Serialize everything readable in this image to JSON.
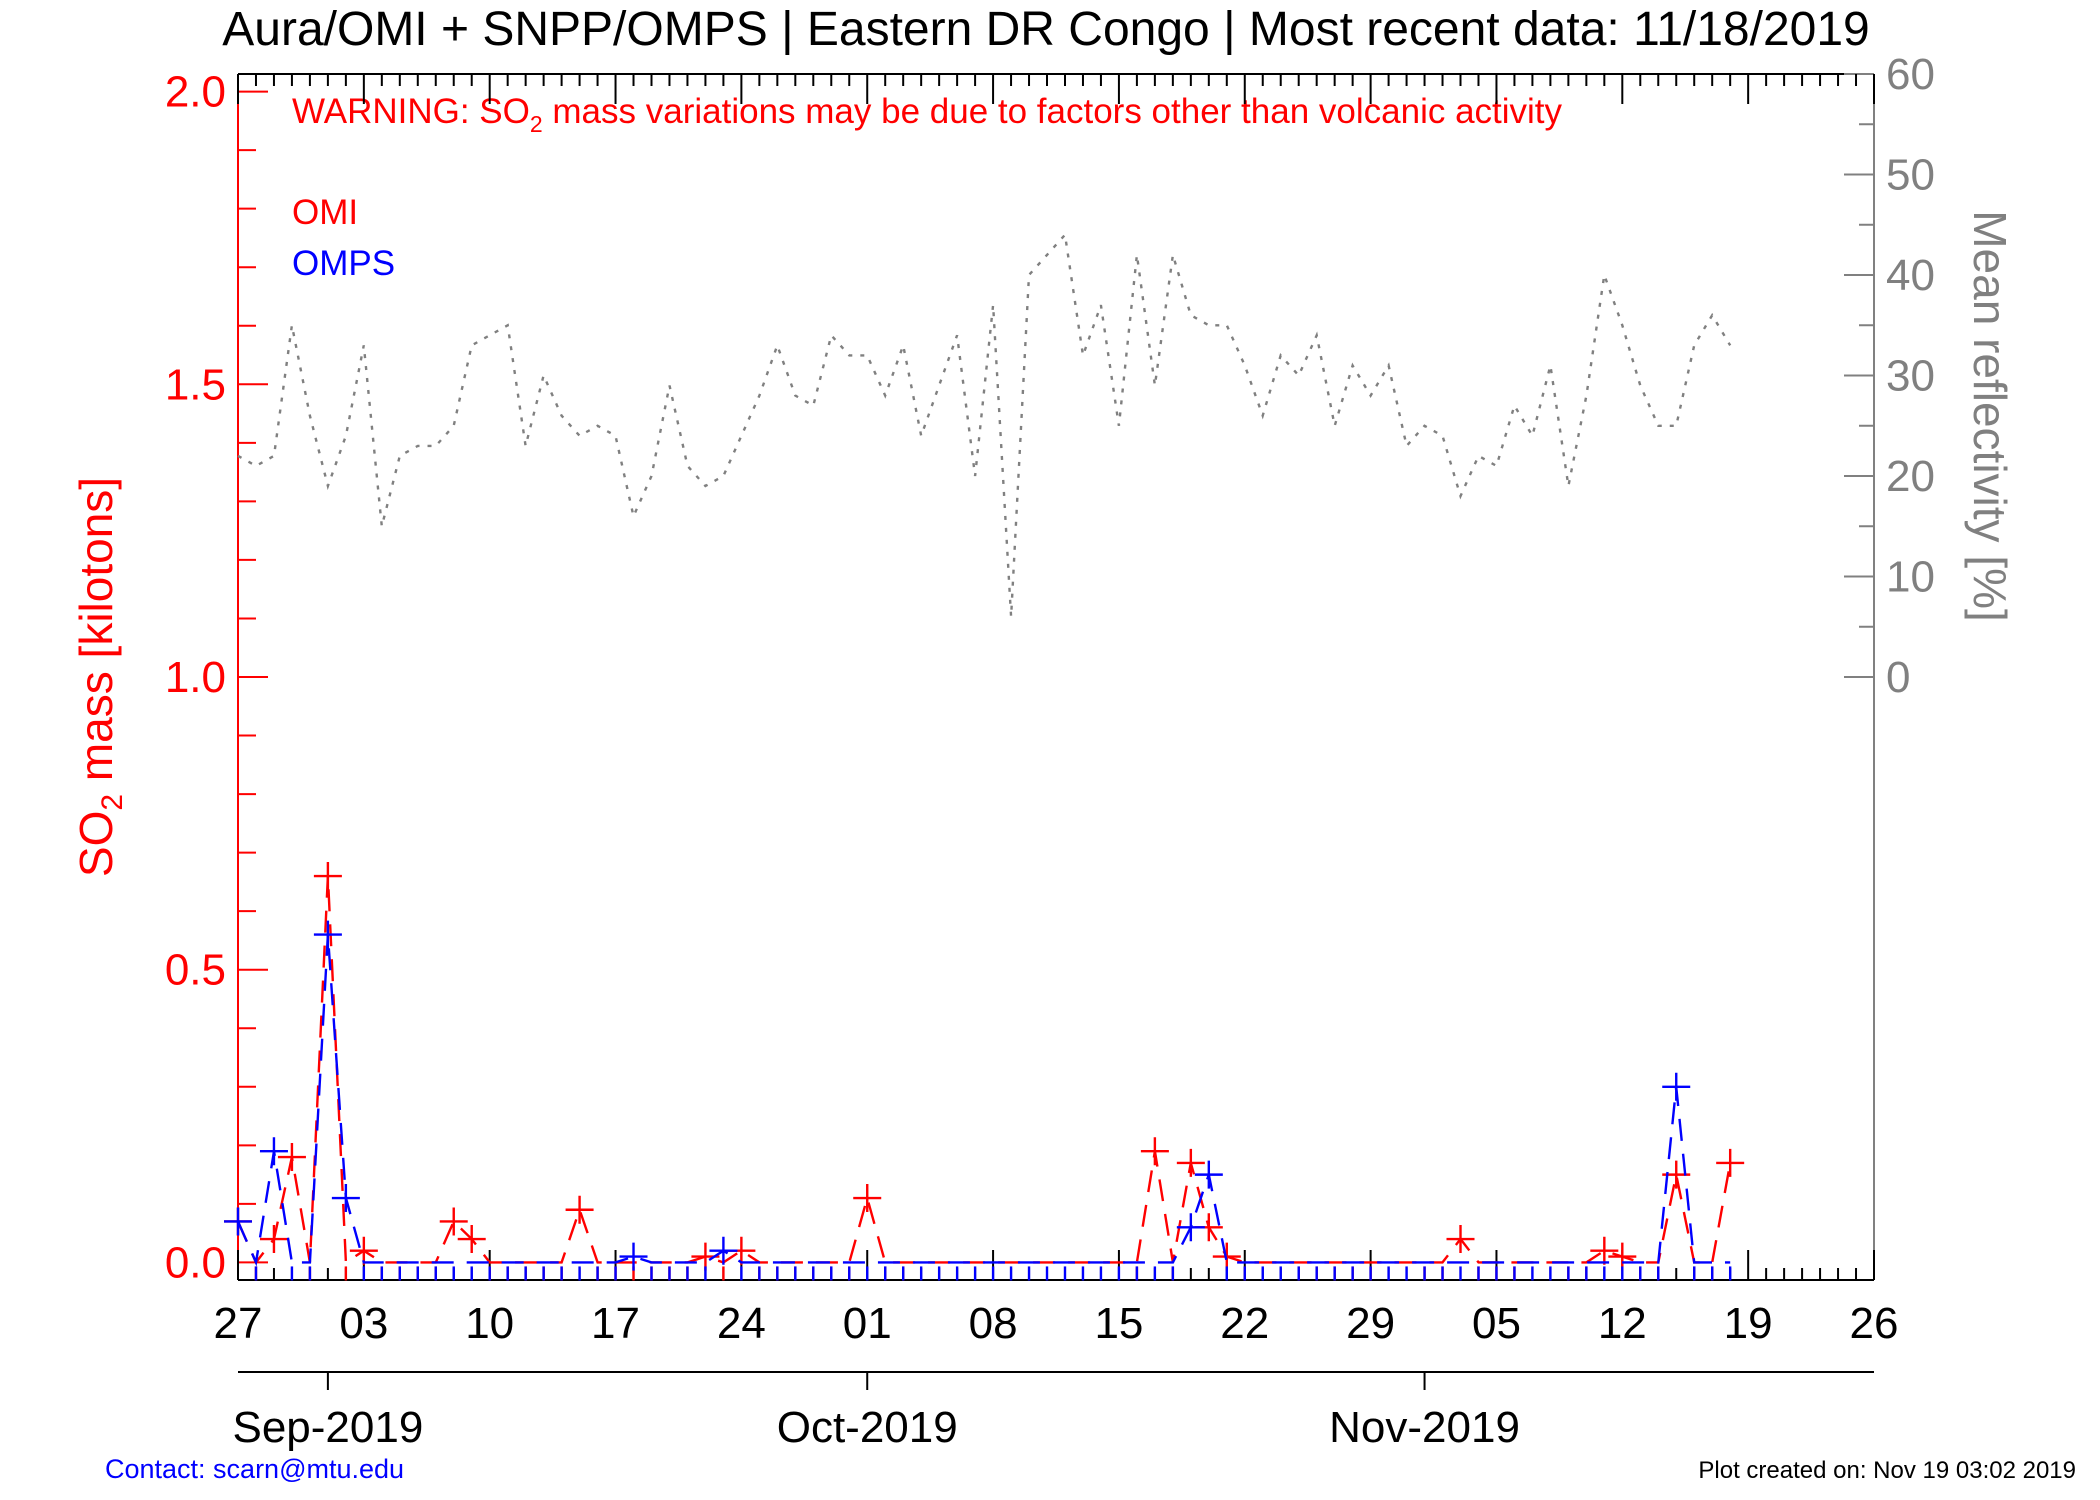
{
  "title": "Aura/OMI + SNPP/OMPS | Eastern DR Congo | Most recent data: 11/18/2019",
  "warning": {
    "prefix": "WARNING: SO",
    "sub": "2",
    "suffix": " mass variations may be due to factors other than volcanic activity"
  },
  "legend": {
    "omi": "OMI",
    "omps": "OMPS"
  },
  "contact": "Contact: scarn@mtu.edu",
  "created": "Plot created on: Nov 19 03:02 2019",
  "colors": {
    "omi": "#ff0000",
    "omps": "#0000ff",
    "reflectivity": "#808080",
    "axis": "#000000"
  },
  "chart_data": {
    "type": "line",
    "left_axis": {
      "label_prefix": "SO",
      "label_sub": "2",
      "label_suffix": " mass [kilotons]",
      "range": [
        -0.03,
        2.03
      ],
      "ticks": [
        0.0,
        0.5,
        1.0,
        1.5,
        2.0
      ],
      "tick_labels": [
        "0.0",
        "0.5",
        "1.0",
        "1.5",
        "2.0"
      ]
    },
    "right_axis": {
      "label": "Mean reflectivity [%]",
      "range": [
        -60,
        60
      ],
      "ticks": [
        0,
        10,
        20,
        30,
        40,
        50,
        60
      ],
      "tick_labels": [
        "0",
        "10",
        "20",
        "30",
        "40",
        "50",
        "60"
      ]
    },
    "x_axis": {
      "range": [
        "2019-08-27",
        "2019-11-26"
      ],
      "tick_dates": [
        "2019-08-27",
        "2019-09-03",
        "2019-09-10",
        "2019-09-17",
        "2019-09-24",
        "2019-10-01",
        "2019-10-08",
        "2019-10-15",
        "2019-10-22",
        "2019-10-29",
        "2019-11-05",
        "2019-11-12",
        "2019-11-19",
        "2019-11-26"
      ],
      "tick_labels": [
        "27",
        "03",
        "10",
        "17",
        "24",
        "01",
        "08",
        "15",
        "22",
        "29",
        "05",
        "12",
        "19",
        "26"
      ],
      "month_dates": [
        "2019-09-01",
        "2019-10-01",
        "2019-11-01"
      ],
      "month_labels": [
        "Sep-2019",
        "Oct-2019",
        "Nov-2019"
      ]
    },
    "series": [
      {
        "name": "OMI",
        "values": [
          [
            "2019-08-27",
            0.07
          ],
          [
            "2019-08-28",
            0.0
          ],
          [
            "2019-08-29",
            0.04
          ],
          [
            "2019-08-30",
            0.18
          ],
          [
            "2019-08-31",
            0.0
          ],
          [
            "2019-09-01",
            0.66
          ],
          [
            "2019-09-02",
            0.0
          ],
          [
            "2019-09-03",
            0.02
          ],
          [
            "2019-09-04",
            0.0
          ],
          [
            "2019-09-05",
            0.0
          ],
          [
            "2019-09-06",
            0.0
          ],
          [
            "2019-09-07",
            0.0
          ],
          [
            "2019-09-08",
            0.07
          ],
          [
            "2019-09-09",
            0.04
          ],
          [
            "2019-09-10",
            0.0
          ],
          [
            "2019-09-11",
            0.0
          ],
          [
            "2019-09-12",
            0.0
          ],
          [
            "2019-09-13",
            0.0
          ],
          [
            "2019-09-14",
            0.0
          ],
          [
            "2019-09-15",
            0.09
          ],
          [
            "2019-09-16",
            0.0
          ],
          [
            "2019-09-17",
            0.0
          ],
          [
            "2019-09-18",
            0.0
          ],
          [
            "2019-09-19",
            0.0
          ],
          [
            "2019-09-20",
            0.0
          ],
          [
            "2019-09-21",
            0.0
          ],
          [
            "2019-09-22",
            0.01
          ],
          [
            "2019-09-23",
            0.0
          ],
          [
            "2019-09-24",
            0.02
          ],
          [
            "2019-09-25",
            0.0
          ],
          [
            "2019-09-26",
            0.0
          ],
          [
            "2019-09-27",
            0.0
          ],
          [
            "2019-09-28",
            0.0
          ],
          [
            "2019-09-29",
            0.0
          ],
          [
            "2019-09-30",
            0.0
          ],
          [
            "2019-10-01",
            0.11
          ],
          [
            "2019-10-02",
            0.0
          ],
          [
            "2019-10-03",
            0.0
          ],
          [
            "2019-10-16",
            0.0
          ],
          [
            "2019-10-17",
            0.19
          ],
          [
            "2019-10-18",
            0.0
          ],
          [
            "2019-10-19",
            0.17
          ],
          [
            "2019-10-20",
            0.06
          ],
          [
            "2019-10-21",
            0.01
          ],
          [
            "2019-10-22",
            0.0
          ],
          [
            "2019-10-25",
            0.0
          ],
          [
            "2019-10-26",
            0.0
          ],
          [
            "2019-10-27",
            0.0
          ],
          [
            "2019-10-28",
            0.0
          ],
          [
            "2019-10-29",
            0.0
          ],
          [
            "2019-11-01",
            0.0
          ],
          [
            "2019-11-02",
            0.0
          ],
          [
            "2019-11-03",
            0.04
          ],
          [
            "2019-11-04",
            0.0
          ],
          [
            "2019-11-05",
            0.0
          ],
          [
            "2019-11-06",
            0.0
          ],
          [
            "2019-11-09",
            0.0
          ],
          [
            "2019-11-10",
            0.0
          ],
          [
            "2019-11-11",
            0.02
          ],
          [
            "2019-11-12",
            0.01
          ],
          [
            "2019-11-13",
            0.0
          ],
          [
            "2019-11-14",
            0.0
          ],
          [
            "2019-11-15",
            0.15
          ],
          [
            "2019-11-16",
            0.0
          ],
          [
            "2019-11-17",
            0.0
          ],
          [
            "2019-11-18",
            0.17
          ]
        ]
      },
      {
        "name": "OMPS",
        "values": [
          [
            "2019-08-27",
            0.07
          ],
          [
            "2019-08-28",
            0.0
          ],
          [
            "2019-08-29",
            0.19
          ],
          [
            "2019-08-30",
            0.0
          ],
          [
            "2019-08-31",
            0.0
          ],
          [
            "2019-09-01",
            0.56
          ],
          [
            "2019-09-02",
            0.11
          ],
          [
            "2019-09-03",
            0.0
          ],
          [
            "2019-09-04",
            0.0
          ],
          [
            "2019-09-05",
            0.0
          ],
          [
            "2019-09-06",
            0.0
          ],
          [
            "2019-09-07",
            0.0
          ],
          [
            "2019-09-08",
            0.0
          ],
          [
            "2019-09-09",
            0.0
          ],
          [
            "2019-09-10",
            0.0
          ],
          [
            "2019-09-11",
            0.0
          ],
          [
            "2019-09-12",
            0.0
          ],
          [
            "2019-09-13",
            0.0
          ],
          [
            "2019-09-14",
            0.0
          ],
          [
            "2019-09-15",
            0.0
          ],
          [
            "2019-09-16",
            0.0
          ],
          [
            "2019-09-17",
            0.0
          ],
          [
            "2019-09-18",
            0.01
          ],
          [
            "2019-09-19",
            0.0
          ],
          [
            "2019-09-20",
            0.0
          ],
          [
            "2019-09-21",
            0.0
          ],
          [
            "2019-09-22",
            0.0
          ],
          [
            "2019-09-23",
            0.02
          ],
          [
            "2019-09-24",
            0.0
          ],
          [
            "2019-09-25",
            0.0
          ],
          [
            "2019-09-26",
            0.0
          ],
          [
            "2019-09-27",
            0.0
          ],
          [
            "2019-09-28",
            0.0
          ],
          [
            "2019-09-29",
            0.0
          ],
          [
            "2019-09-30",
            0.0
          ],
          [
            "2019-10-01",
            0.0
          ],
          [
            "2019-10-02",
            0.0
          ],
          [
            "2019-10-03",
            0.0
          ],
          [
            "2019-10-04",
            0.0
          ],
          [
            "2019-10-05",
            0.0
          ],
          [
            "2019-10-06",
            0.0
          ],
          [
            "2019-10-07",
            0.0
          ],
          [
            "2019-10-08",
            0.0
          ],
          [
            "2019-10-09",
            0.0
          ],
          [
            "2019-10-10",
            0.0
          ],
          [
            "2019-10-11",
            0.0
          ],
          [
            "2019-10-12",
            0.0
          ],
          [
            "2019-10-13",
            0.0
          ],
          [
            "2019-10-14",
            0.0
          ],
          [
            "2019-10-15",
            0.0
          ],
          [
            "2019-10-16",
            0.0
          ],
          [
            "2019-10-17",
            0.0
          ],
          [
            "2019-10-18",
            0.0
          ],
          [
            "2019-10-19",
            0.06
          ],
          [
            "2019-10-20",
            0.15
          ],
          [
            "2019-10-21",
            0.0
          ],
          [
            "2019-10-22",
            0.0
          ],
          [
            "2019-10-23",
            0.0
          ],
          [
            "2019-10-24",
            0.0
          ],
          [
            "2019-10-25",
            0.0
          ],
          [
            "2019-10-26",
            0.0
          ],
          [
            "2019-10-27",
            0.0
          ],
          [
            "2019-10-28",
            0.0
          ],
          [
            "2019-10-29",
            0.0
          ],
          [
            "2019-10-30",
            0.0
          ],
          [
            "2019-10-31",
            0.0
          ],
          [
            "2019-11-01",
            0.0
          ],
          [
            "2019-11-02",
            0.0
          ],
          [
            "2019-11-03",
            0.0
          ],
          [
            "2019-11-04",
            0.0
          ],
          [
            "2019-11-05",
            0.0
          ],
          [
            "2019-11-06",
            0.0
          ],
          [
            "2019-11-07",
            0.0
          ],
          [
            "2019-11-08",
            0.0
          ],
          [
            "2019-11-09",
            0.0
          ],
          [
            "2019-11-10",
            0.0
          ],
          [
            "2019-11-11",
            0.0
          ],
          [
            "2019-11-12",
            0.0
          ],
          [
            "2019-11-13",
            0.0
          ],
          [
            "2019-11-14",
            0.0
          ],
          [
            "2019-11-15",
            0.3
          ],
          [
            "2019-11-16",
            0.0
          ],
          [
            "2019-11-17",
            0.0
          ],
          [
            "2019-11-18",
            0.0
          ]
        ]
      },
      {
        "axis": "right",
        "values": [
          [
            "2019-08-27",
            22
          ],
          [
            "2019-08-28",
            21
          ],
          [
            "2019-08-29",
            22
          ],
          [
            "2019-08-30",
            35
          ],
          [
            "2019-08-31",
            26
          ],
          [
            "2019-09-01",
            19
          ],
          [
            "2019-09-02",
            24
          ],
          [
            "2019-09-03",
            33
          ],
          [
            "2019-09-04",
            15
          ],
          [
            "2019-09-05",
            22
          ],
          [
            "2019-09-06",
            23
          ],
          [
            "2019-09-07",
            23
          ],
          [
            "2019-09-08",
            25
          ],
          [
            "2019-09-09",
            33
          ],
          [
            "2019-09-10",
            34
          ],
          [
            "2019-09-11",
            35
          ],
          [
            "2019-09-12",
            23
          ],
          [
            "2019-09-13",
            30
          ],
          [
            "2019-09-14",
            26
          ],
          [
            "2019-09-15",
            24
          ],
          [
            "2019-09-16",
            25
          ],
          [
            "2019-09-17",
            24
          ],
          [
            "2019-09-18",
            16
          ],
          [
            "2019-09-19",
            20
          ],
          [
            "2019-09-20",
            29
          ],
          [
            "2019-09-21",
            21
          ],
          [
            "2019-09-22",
            19
          ],
          [
            "2019-09-23",
            20
          ],
          [
            "2019-09-24",
            24
          ],
          [
            "2019-09-25",
            28
          ],
          [
            "2019-09-26",
            33
          ],
          [
            "2019-09-27",
            28
          ],
          [
            "2019-09-28",
            27
          ],
          [
            "2019-09-29",
            34
          ],
          [
            "2019-09-30",
            32
          ],
          [
            "2019-10-01",
            32
          ],
          [
            "2019-10-02",
            28
          ],
          [
            "2019-10-03",
            33
          ],
          [
            "2019-10-04",
            24
          ],
          [
            "2019-10-05",
            29
          ],
          [
            "2019-10-06",
            34
          ],
          [
            "2019-10-07",
            20
          ],
          [
            "2019-10-08",
            37
          ],
          [
            "2019-10-09",
            6
          ],
          [
            "2019-10-10",
            40
          ],
          [
            "2019-10-11",
            42
          ],
          [
            "2019-10-12",
            44
          ],
          [
            "2019-10-13",
            32
          ],
          [
            "2019-10-14",
            37
          ],
          [
            "2019-10-15",
            25
          ],
          [
            "2019-10-16",
            42
          ],
          [
            "2019-10-17",
            29
          ],
          [
            "2019-10-18",
            42
          ],
          [
            "2019-10-19",
            36
          ],
          [
            "2019-10-20",
            35
          ],
          [
            "2019-10-21",
            35
          ],
          [
            "2019-10-22",
            31
          ],
          [
            "2019-10-23",
            26
          ],
          [
            "2019-10-24",
            32
          ],
          [
            "2019-10-25",
            30
          ],
          [
            "2019-10-26",
            34
          ],
          [
            "2019-10-27",
            25
          ],
          [
            "2019-10-28",
            31
          ],
          [
            "2019-10-29",
            28
          ],
          [
            "2019-10-30",
            31
          ],
          [
            "2019-10-31",
            23
          ],
          [
            "2019-11-01",
            25
          ],
          [
            "2019-11-02",
            24
          ],
          [
            "2019-11-03",
            18
          ],
          [
            "2019-11-04",
            22
          ],
          [
            "2019-11-05",
            21
          ],
          [
            "2019-11-06",
            27
          ],
          [
            "2019-11-07",
            24
          ],
          [
            "2019-11-08",
            31
          ],
          [
            "2019-11-09",
            19
          ],
          [
            "2019-11-10",
            28
          ],
          [
            "2019-11-11",
            40
          ],
          [
            "2019-11-12",
            35
          ],
          [
            "2019-11-13",
            29
          ],
          [
            "2019-11-14",
            25
          ],
          [
            "2019-11-15",
            25
          ],
          [
            "2019-11-16",
            33
          ],
          [
            "2019-11-17",
            36
          ],
          [
            "2019-11-18",
            33
          ]
        ]
      }
    ]
  }
}
